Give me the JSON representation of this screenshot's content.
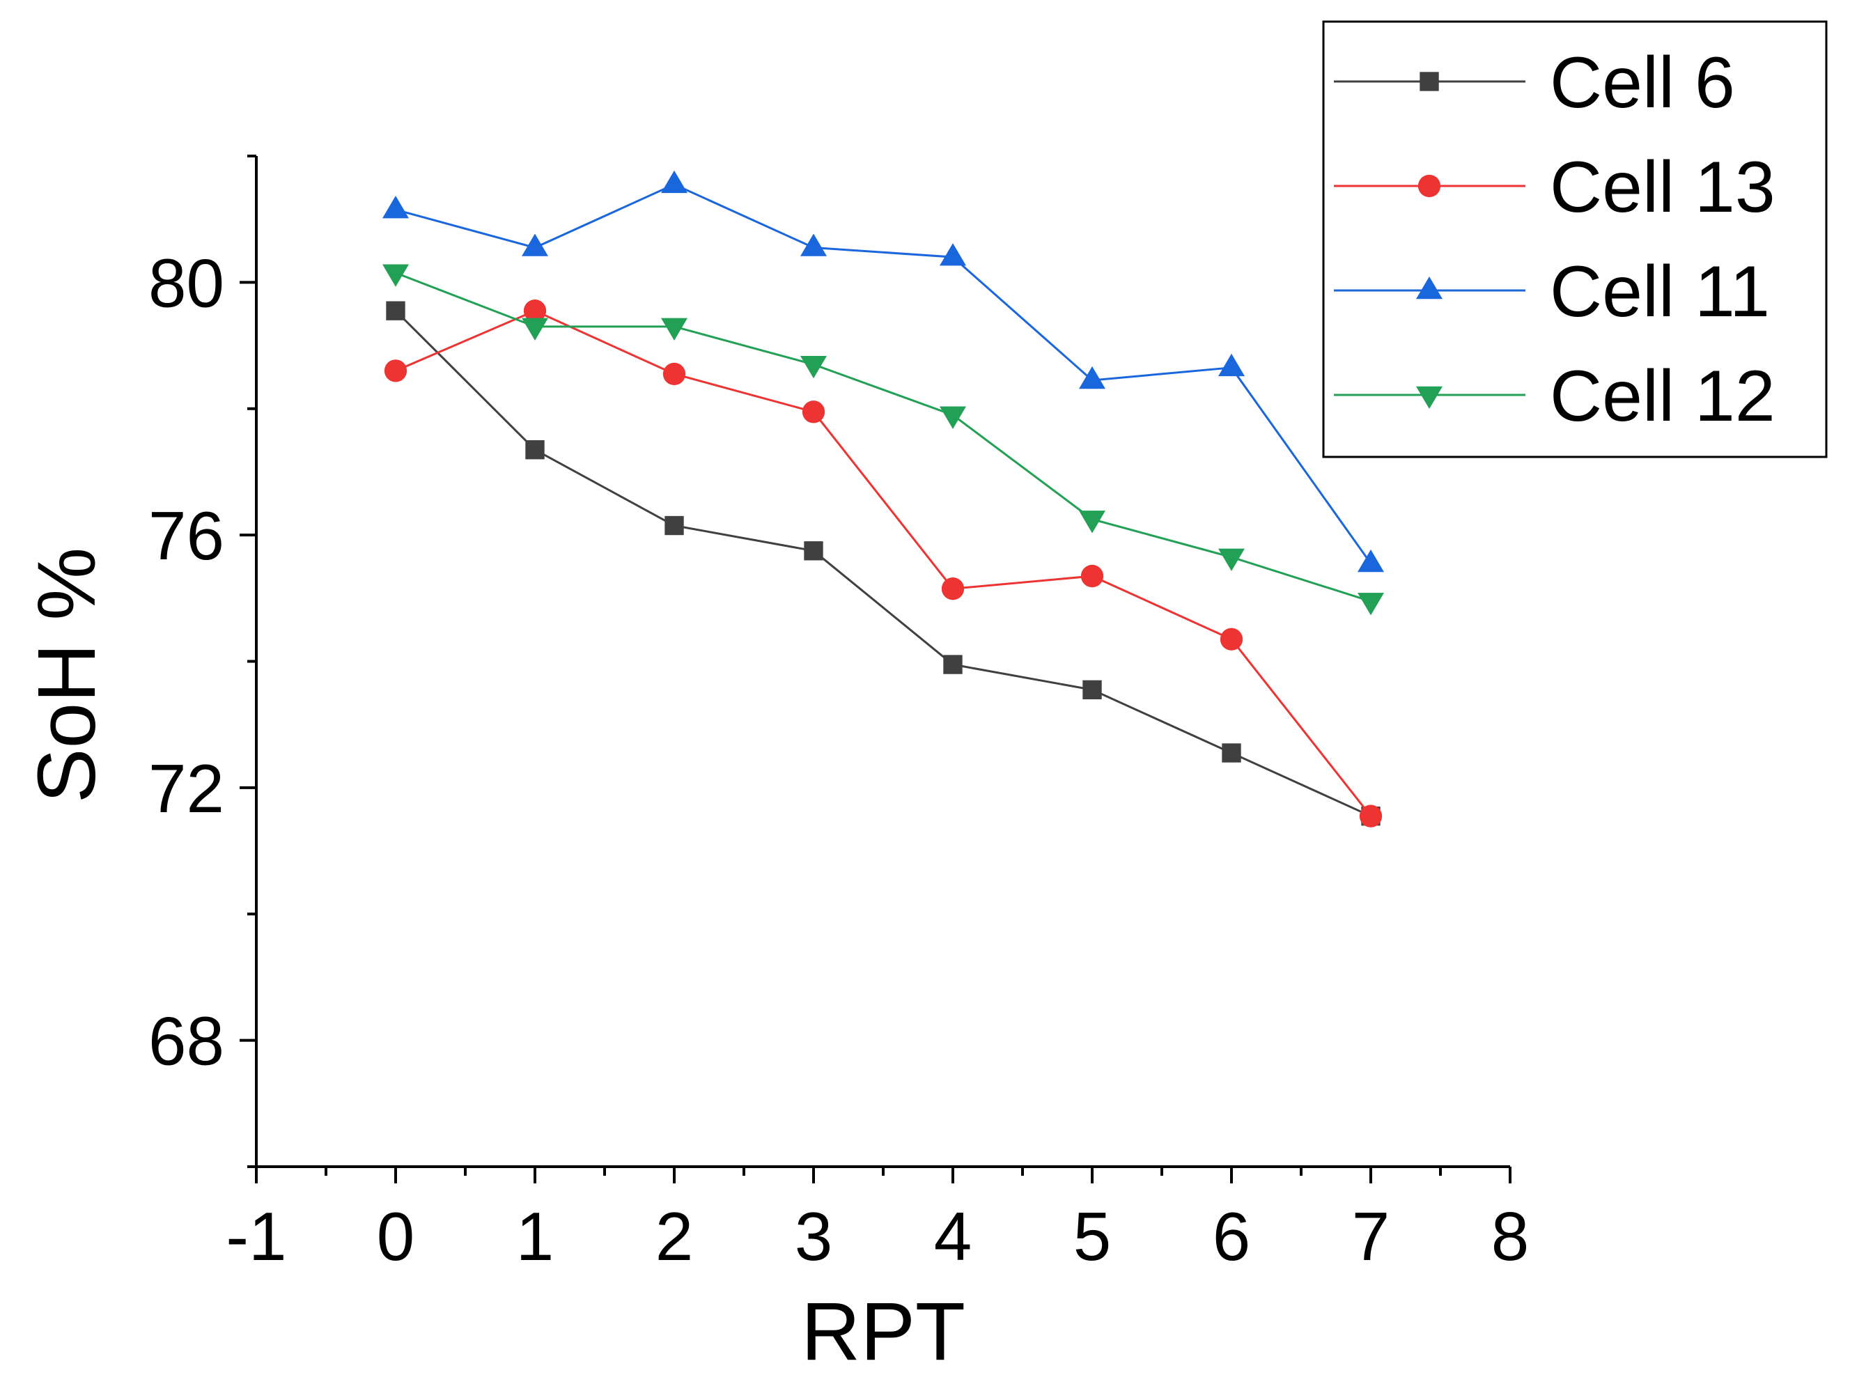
{
  "chart_data": {
    "type": "line",
    "title": "",
    "xlabel": "RPT",
    "ylabel": "SoH %",
    "xlim": [
      -1,
      8
    ],
    "ylim": [
      66,
      82
    ],
    "xticks": [
      -1,
      0,
      1,
      2,
      3,
      4,
      5,
      6,
      7,
      8
    ],
    "xtick_labels": [
      "-1",
      "0",
      "1",
      "2",
      "3",
      "4",
      "5",
      "6",
      "7",
      "8"
    ],
    "yticks": [
      68,
      72,
      76,
      80
    ],
    "ytick_labels": [
      "68",
      "72",
      "76",
      "80"
    ],
    "grid": false,
    "legend_position": "top-right",
    "x": [
      0,
      1,
      2,
      3,
      4,
      5,
      6,
      7
    ],
    "series": [
      {
        "name": "Cell 6",
        "color": "#404040",
        "marker": "square",
        "values": [
          79.55,
          77.35,
          76.15,
          75.75,
          73.95,
          73.55,
          72.55,
          71.55
        ]
      },
      {
        "name": "Cell 13",
        "color": "#ee3333",
        "marker": "circle",
        "values": [
          78.6,
          79.55,
          78.55,
          77.95,
          75.15,
          75.35,
          74.35,
          71.55
        ]
      },
      {
        "name": "Cell 11",
        "color": "#1a66dd",
        "marker": "triangle-up",
        "values": [
          81.15,
          80.55,
          81.55,
          80.55,
          80.4,
          78.45,
          78.65,
          75.55
        ]
      },
      {
        "name": "Cell 12",
        "color": "#22a055",
        "marker": "triangle-down",
        "values": [
          80.15,
          79.3,
          79.3,
          78.7,
          77.9,
          76.25,
          75.65,
          74.95
        ]
      }
    ]
  }
}
